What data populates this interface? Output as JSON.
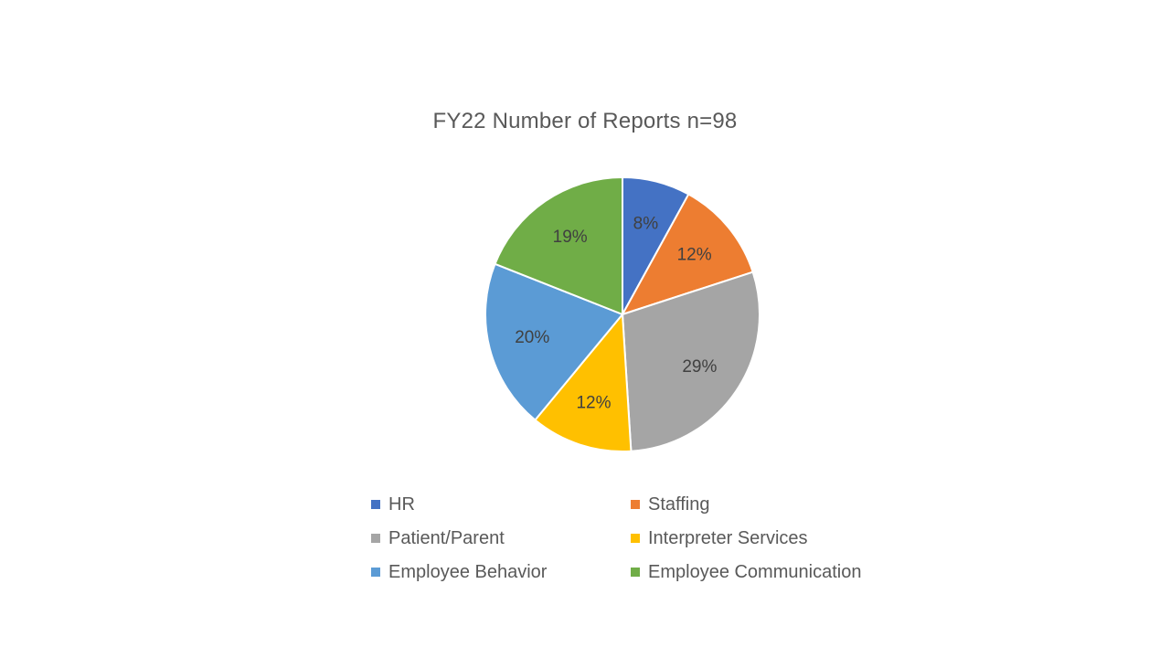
{
  "chart_data": {
    "type": "pie",
    "title": "FY22 Number of Reports n=98",
    "categories": [
      "HR",
      "Staffing",
      "Patient/Parent",
      "Interpreter Services",
      "Employee Behavior",
      "Employee Communication"
    ],
    "values": [
      8,
      12,
      29,
      12,
      20,
      19
    ],
    "data_labels": [
      "8%",
      "12%",
      "29%",
      "12%",
      "20%",
      "19%"
    ],
    "colors": [
      "#4472C4",
      "#ED7D31",
      "#A5A5A5",
      "#FFC000",
      "#5B9BD5",
      "#70AD47"
    ],
    "legend_position": "bottom",
    "start_angle": "12 o'clock",
    "direction": "clockwise"
  }
}
